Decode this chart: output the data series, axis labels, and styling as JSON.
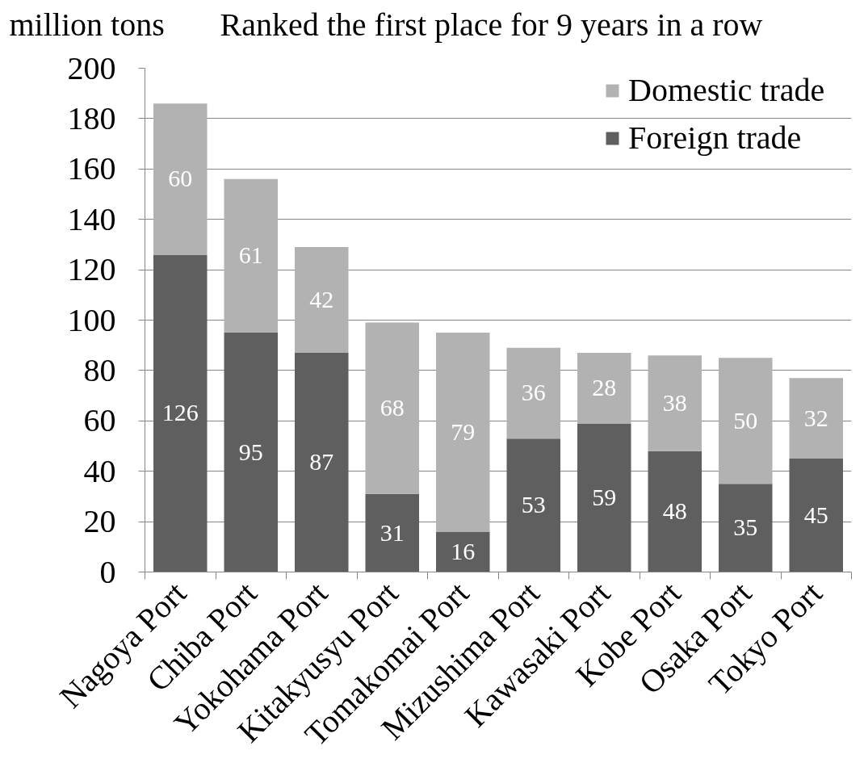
{
  "chart_data": {
    "type": "bar",
    "title": "Ranked the first place for 9 years in a row",
    "ylabel": "million tons",
    "categories": [
      "Nagoya Port",
      "Chiba Port",
      "Yokohama Port",
      "Kitakyusyu Port",
      "Tomakomai Port",
      "Mizushima Port",
      "Kawasaki Port",
      "Kobe Port",
      "Osaka Port",
      "Tokyo Port"
    ],
    "series": [
      {
        "name": "Foreign trade",
        "color": "#5f5f5f",
        "values": [
          126,
          95,
          87,
          31,
          16,
          53,
          59,
          48,
          35,
          45
        ]
      },
      {
        "name": "Domestic trade",
        "color": "#b2b2b2",
        "values": [
          60,
          61,
          42,
          68,
          79,
          36,
          28,
          38,
          50,
          32
        ]
      }
    ],
    "stacked": true,
    "ylim": [
      0,
      200
    ],
    "yticks": [
      0,
      20,
      40,
      60,
      80,
      100,
      120,
      140,
      160,
      180,
      200
    ],
    "grid": "y",
    "legend": "top right",
    "data_labels": true
  }
}
